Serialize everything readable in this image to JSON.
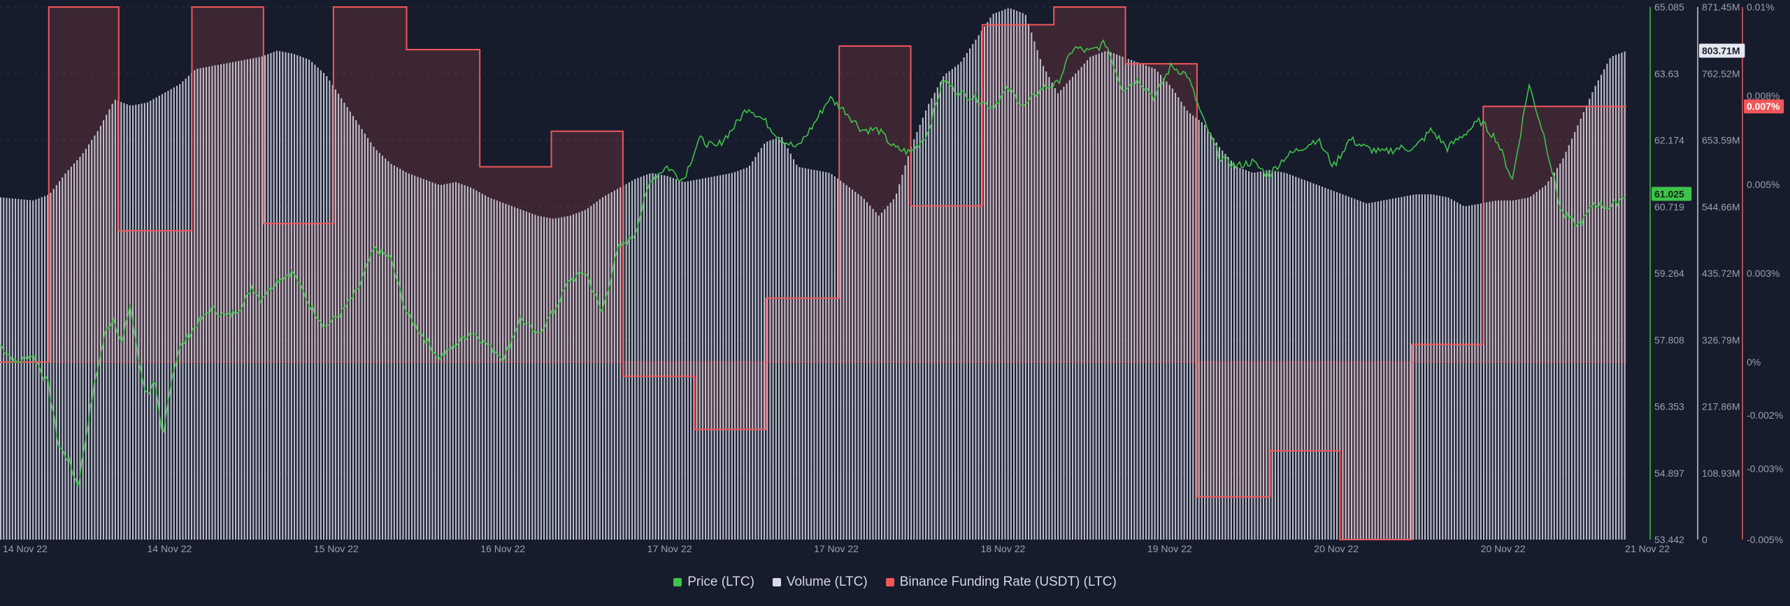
{
  "chart_data": {
    "type": "line",
    "x_tick_labels": [
      "14 Nov 22",
      "14 Nov 22",
      "15 Nov 22",
      "16 Nov 22",
      "17 Nov 22",
      "17 Nov 22",
      "18 Nov 22",
      "19 Nov 22",
      "20 Nov 22",
      "20 Nov 22",
      "21 Nov 22"
    ],
    "axes": {
      "price": {
        "color": "#3ec24a",
        "ylim": [
          53.442,
          65.085
        ],
        "ticks": [
          "65.085",
          "63.63",
          "62.174",
          "60.719",
          "59.264",
          "57.808",
          "56.353",
          "54.897",
          "53.442"
        ],
        "last_value_label": "61.025"
      },
      "volume": {
        "color": "#d9dbe8",
        "ylim": [
          0,
          871450000
        ],
        "ticks": [
          "871.45M",
          "762.52M",
          "653.59M",
          "544.66M",
          "435.72M",
          "326.79M",
          "217.86M",
          "108.93M",
          "0"
        ],
        "last_value_label": "803.71M"
      },
      "funding": {
        "color": "#f0575a",
        "ylim": [
          -0.005,
          0.01
        ],
        "ticks": [
          "0.01%",
          "0.008%",
          "0.005%",
          "0.003%",
          "0%",
          "-0.002%",
          "-0.003%",
          "-0.005%"
        ],
        "last_value_label": "0.007%"
      }
    },
    "series": [
      {
        "name": "Price (LTC)",
        "color": "#3ec24a",
        "x": [
          0.0,
          0.01,
          0.02,
          0.03,
          0.036,
          0.042,
          0.048,
          0.055,
          0.06,
          0.065,
          0.07,
          0.075,
          0.08,
          0.085,
          0.09,
          0.095,
          0.1,
          0.105,
          0.11,
          0.12,
          0.13,
          0.14,
          0.15,
          0.155,
          0.16,
          0.17,
          0.18,
          0.19,
          0.2,
          0.21,
          0.22,
          0.23,
          0.24,
          0.25,
          0.26,
          0.27,
          0.28,
          0.29,
          0.3,
          0.31,
          0.32,
          0.33,
          0.34,
          0.35,
          0.36,
          0.37,
          0.38,
          0.39,
          0.4,
          0.41,
          0.42,
          0.43,
          0.44,
          0.45,
          0.46,
          0.47,
          0.48,
          0.49,
          0.5,
          0.51,
          0.52,
          0.53,
          0.54,
          0.55,
          0.56,
          0.57,
          0.58,
          0.59,
          0.6,
          0.61,
          0.62,
          0.63,
          0.64,
          0.65,
          0.66,
          0.67,
          0.68,
          0.69,
          0.7,
          0.71,
          0.72,
          0.73,
          0.74,
          0.75,
          0.76,
          0.77,
          0.78,
          0.79,
          0.8,
          0.81,
          0.82,
          0.83,
          0.84,
          0.85,
          0.86,
          0.87,
          0.88,
          0.89,
          0.9,
          0.91,
          0.92,
          0.93,
          0.94,
          0.95,
          0.96,
          0.97,
          0.975,
          0.98,
          0.99,
          1.0
        ],
        "values": [
          57.7,
          57.3,
          57.5,
          56.8,
          55.5,
          55.2,
          54.6,
          56.2,
          57.2,
          58.0,
          58.3,
          57.7,
          58.6,
          57.4,
          56.6,
          56.9,
          55.6,
          56.9,
          57.6,
          58.1,
          58.5,
          58.3,
          58.6,
          59.0,
          58.7,
          59.1,
          59.3,
          58.6,
          58.1,
          58.4,
          58.9,
          59.8,
          59.6,
          58.4,
          57.9,
          57.4,
          57.7,
          58.0,
          57.7,
          57.4,
          58.3,
          57.9,
          58.4,
          59.1,
          59.3,
          58.4,
          59.8,
          60.1,
          61.3,
          61.6,
          61.3,
          62.2,
          62.0,
          62.4,
          62.9,
          62.6,
          62.2,
          62.0,
          62.5,
          63.1,
          62.8,
          62.4,
          62.4,
          62.0,
          61.9,
          62.3,
          63.5,
          63.2,
          63.1,
          62.9,
          63.3,
          62.9,
          63.3,
          63.4,
          64.2,
          64.1,
          64.3,
          63.3,
          63.5,
          63.1,
          63.8,
          63.6,
          62.6,
          61.8,
          61.6,
          61.7,
          61.4,
          61.8,
          62.0,
          62.2,
          61.6,
          62.2,
          62.0,
          61.9,
          62.0,
          62.0,
          62.4,
          62.0,
          62.3,
          62.6,
          62.2,
          61.3,
          63.4,
          62.2,
          60.6,
          60.3,
          60.5,
          60.8,
          60.7,
          61.0
        ]
      },
      {
        "name": "Volume (LTC)",
        "color": "#d9dbe8",
        "x": [
          0.0,
          0.02,
          0.03,
          0.04,
          0.05,
          0.06,
          0.07,
          0.08,
          0.09,
          0.1,
          0.11,
          0.12,
          0.13,
          0.14,
          0.15,
          0.16,
          0.17,
          0.18,
          0.19,
          0.2,
          0.21,
          0.22,
          0.23,
          0.24,
          0.25,
          0.26,
          0.27,
          0.28,
          0.29,
          0.3,
          0.31,
          0.32,
          0.33,
          0.34,
          0.35,
          0.36,
          0.37,
          0.38,
          0.39,
          0.4,
          0.41,
          0.42,
          0.43,
          0.44,
          0.45,
          0.46,
          0.47,
          0.48,
          0.49,
          0.5,
          0.51,
          0.52,
          0.53,
          0.54,
          0.55,
          0.56,
          0.57,
          0.58,
          0.59,
          0.6,
          0.61,
          0.62,
          0.63,
          0.64,
          0.65,
          0.66,
          0.67,
          0.68,
          0.69,
          0.7,
          0.71,
          0.72,
          0.73,
          0.74,
          0.75,
          0.76,
          0.77,
          0.78,
          0.79,
          0.8,
          0.81,
          0.82,
          0.83,
          0.84,
          0.85,
          0.86,
          0.87,
          0.88,
          0.89,
          0.9,
          0.91,
          0.92,
          0.93,
          0.94,
          0.95,
          0.96,
          0.97,
          0.98,
          0.99,
          1.0
        ],
        "values": [
          560,
          555,
          565,
          600,
          630,
          670,
          720,
          710,
          715,
          730,
          745,
          770,
          775,
          780,
          785,
          790,
          800,
          795,
          785,
          760,
          720,
          680,
          640,
          615,
          600,
          590,
          580,
          585,
          575,
          560,
          550,
          540,
          530,
          525,
          530,
          540,
          560,
          575,
          590,
          600,
          595,
          585,
          590,
          595,
          600,
          610,
          650,
          660,
          610,
          605,
          600,
          580,
          560,
          530,
          560,
          645,
          710,
          760,
          780,
          820,
          860,
          870,
          860,
          780,
          730,
          760,
          790,
          800,
          790,
          780,
          770,
          740,
          700,
          680,
          640,
          610,
          600,
          605,
          600,
          590,
          580,
          570,
          560,
          550,
          555,
          560,
          565,
          565,
          560,
          545,
          550,
          555,
          555,
          560,
          580,
          620,
          680,
          740,
          790,
          800
        ]
      },
      {
        "name": "Binance Funding Rate (USDT) (LTC)",
        "color": "#f0575a",
        "type": "step",
        "x_breaks": [
          0.0,
          0.03,
          0.073,
          0.118,
          0.162,
          0.205,
          0.25,
          0.295,
          0.339,
          0.383,
          0.427,
          0.471,
          0.516,
          0.56,
          0.604,
          0.648,
          0.692,
          0.736,
          0.781,
          0.824,
          0.868,
          0.912,
          1.0
        ],
        "values": [
          0,
          0.01,
          0.0037,
          0.01,
          0.0039,
          0.01,
          0.0088,
          0.0055,
          0.0065,
          -0.0004,
          -0.0019,
          0.0018,
          0.0089,
          0.0044,
          0.0095,
          0.01,
          0.0084,
          -0.0038,
          -0.0025,
          -0.005,
          0.0005,
          0.0072
        ]
      }
    ],
    "legend_position": "bottom-center",
    "grid": false
  }
}
